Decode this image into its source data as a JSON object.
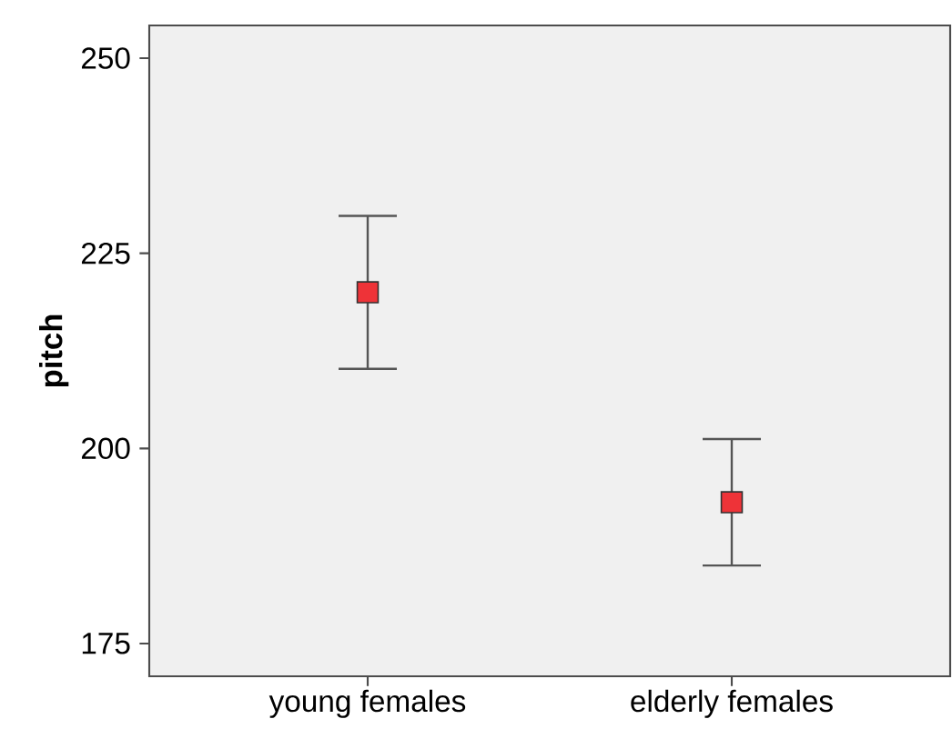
{
  "chart_data": {
    "type": "scatter",
    "ylabel": "pitch",
    "categories": [
      "young females",
      "elderly females"
    ],
    "values": [
      220.0,
      193.1
    ],
    "errors": [
      9.8,
      8.1
    ],
    "color": "#ee3338",
    "marker": "square",
    "ylim": [
      170.8,
      254.2
    ],
    "yticks": [
      175,
      200,
      225,
      250
    ]
  }
}
